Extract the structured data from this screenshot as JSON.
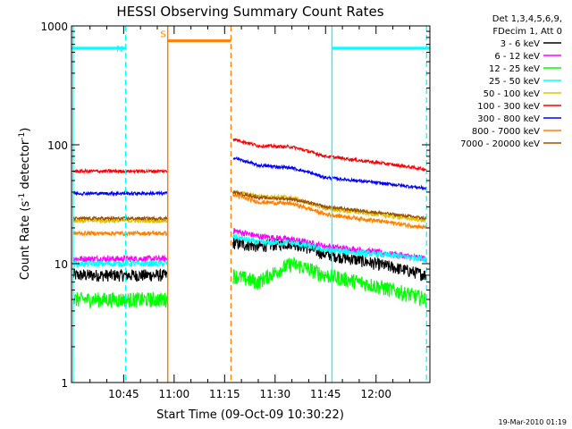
{
  "chart_data": {
    "type": "line",
    "title": "HESSI Observing Summary Count Rates",
    "xlabel": "Start Time (09-Oct-09 10:30:22)",
    "ylabel_main": "Count Rate (s",
    "ylabel_sup1": "-1",
    "ylabel_mid": " detector",
    "ylabel_sup2": "-1",
    "ylabel_end": ")",
    "y_scale": "log",
    "ylim": [
      1,
      1000
    ],
    "xlim_minutes": [
      629.5,
      736.0
    ],
    "x_ticks": [
      {
        "value": 645,
        "label": "10:45"
      },
      {
        "value": 660,
        "label": "11:00"
      },
      {
        "value": 675,
        "label": "11:15"
      },
      {
        "value": 690,
        "label": "11:30"
      },
      {
        "value": 705,
        "label": "11:45"
      },
      {
        "value": 720,
        "label": "12:00"
      }
    ],
    "y_ticks": [
      {
        "value": 1,
        "label": "1"
      },
      {
        "value": 10,
        "label": "10"
      },
      {
        "value": 100,
        "label": "100"
      },
      {
        "value": 1000,
        "label": "1000"
      }
    ],
    "legend": {
      "placement": "right",
      "header": [
        "Det 1,3,4,5,6,9,",
        "FDecim 1, Att 0"
      ]
    },
    "series": [
      {
        "name": "3 - 6 keV",
        "color": "#000000",
        "seg1": 8,
        "seg2": [
          15,
          14,
          15,
          12,
          8
        ],
        "noise": 0.12
      },
      {
        "name": "6 - 12 keV",
        "color": "#ff00ff",
        "seg1": 11,
        "seg2": [
          19,
          17,
          16,
          14,
          11
        ],
        "noise": 0.06
      },
      {
        "name": "12 - 25 keV",
        "color": "#00ff00",
        "seg1": 5,
        "seg2": [
          8,
          7,
          10,
          8,
          5
        ],
        "noise": 0.15
      },
      {
        "name": "25 - 50 keV",
        "color": "#00ffff",
        "seg1": 10,
        "seg2": [
          17,
          15,
          15,
          13,
          11
        ],
        "noise": 0.06
      },
      {
        "name": "50 - 100 keV",
        "color": "#e0c000",
        "seg1": 23,
        "seg2": [
          40,
          37,
          36,
          29,
          23
        ],
        "noise": 0.04
      },
      {
        "name": "100 - 300 keV",
        "color": "#ff0000",
        "seg1": 60,
        "seg2": [
          112,
          98,
          96,
          80,
          62
        ],
        "noise": 0.03
      },
      {
        "name": "300 - 800 keV",
        "color": "#0000ff",
        "seg1": 39,
        "seg2": [
          78,
          67,
          64,
          53,
          43
        ],
        "noise": 0.03
      },
      {
        "name": "800 - 7000 keV",
        "color": "#ff8000",
        "seg1": 18,
        "seg2": [
          38,
          33,
          32,
          26,
          20
        ],
        "noise": 0.04
      },
      {
        "name": "7000 - 20000 keV",
        "color": "#a05000",
        "seg1": 24,
        "seg2": [
          40,
          36,
          35,
          30,
          24
        ],
        "noise": 0.03
      }
    ],
    "data_segments": [
      {
        "start": 630.0,
        "end": 658.0
      },
      {
        "start": 677.5,
        "end": 735.0
      }
    ],
    "seg2_knots_minutes": [
      677.5,
      685,
      695,
      705,
      735
    ],
    "intervals": [
      {
        "label": "N",
        "color": "#00ffff",
        "start": 645.6,
        "end": 706.9,
        "level": 650
      },
      {
        "label": "S",
        "color": "#ff8000",
        "start": 658.1,
        "end": 676.9,
        "level": 750
      }
    ],
    "timestamp": "19-Mar-2010 01:19"
  }
}
